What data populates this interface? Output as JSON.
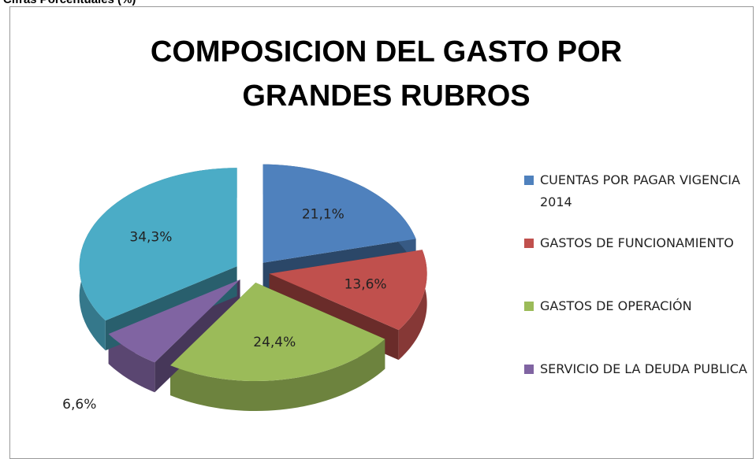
{
  "chart_data": {
    "type": "pie",
    "header": "Cifras Porcentuales (%)",
    "title": "COMPOSICION DEL GASTO POR GRANDES RUBROS",
    "categories": [
      "CUENTAS POR PAGAR VIGENCIA 2014",
      "GASTOS DE FUNCIONAMIENTO",
      "GASTOS DE OPERACIÓN",
      "SERVICIO DE LA DEUDA PUBLICA",
      null
    ],
    "values": [
      21.1,
      13.6,
      24.4,
      6.6,
      34.3
    ],
    "value_labels": [
      "21,1%",
      "13,6%",
      "24,4%",
      "6,6%",
      "34,3%"
    ],
    "colors": [
      "#4f81bd",
      "#c0504d",
      "#9bbb59",
      "#8064a2",
      "#4bacc6"
    ],
    "legend": "right"
  }
}
